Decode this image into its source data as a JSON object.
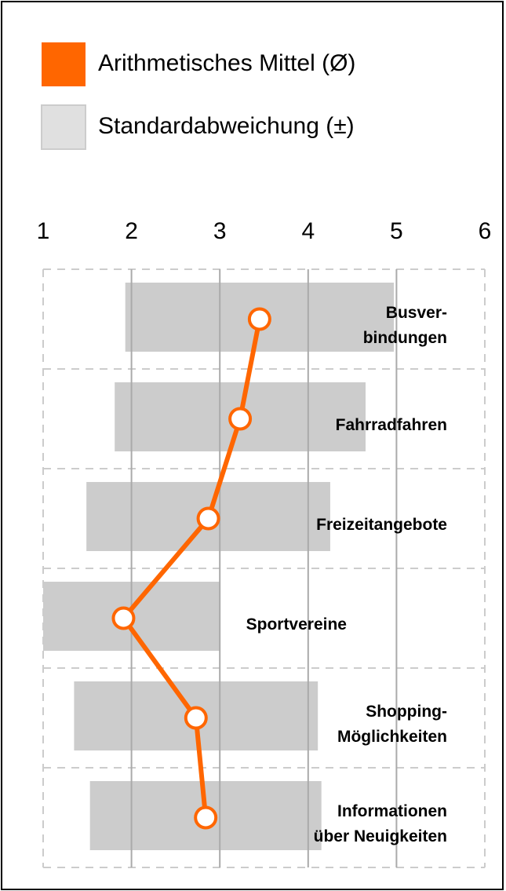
{
  "chart_data": {
    "type": "mean-sd-profile",
    "categories": [
      "Busver-\nbindungen",
      "Fahrradfahren",
      "Freizeitangebote",
      "Sportvereine",
      "Shopping-\nMöglichkeiten",
      "Informationen\nüber Neuigkeiten"
    ],
    "series": [
      {
        "name": "Arithmetisches Mittel (Ø)",
        "color": "#ff6600",
        "values": [
          3.45,
          3.23,
          2.87,
          1.91,
          2.73,
          2.84
        ]
      },
      {
        "name": "Standardabweichung (±)",
        "color": "#cccccc",
        "values": [
          1.52,
          1.42,
          1.38,
          1.09,
          1.38,
          1.31
        ]
      }
    ],
    "xlim": [
      1,
      6
    ],
    "xticks": [
      1,
      2,
      3,
      4,
      5,
      6
    ],
    "grid": true
  }
}
